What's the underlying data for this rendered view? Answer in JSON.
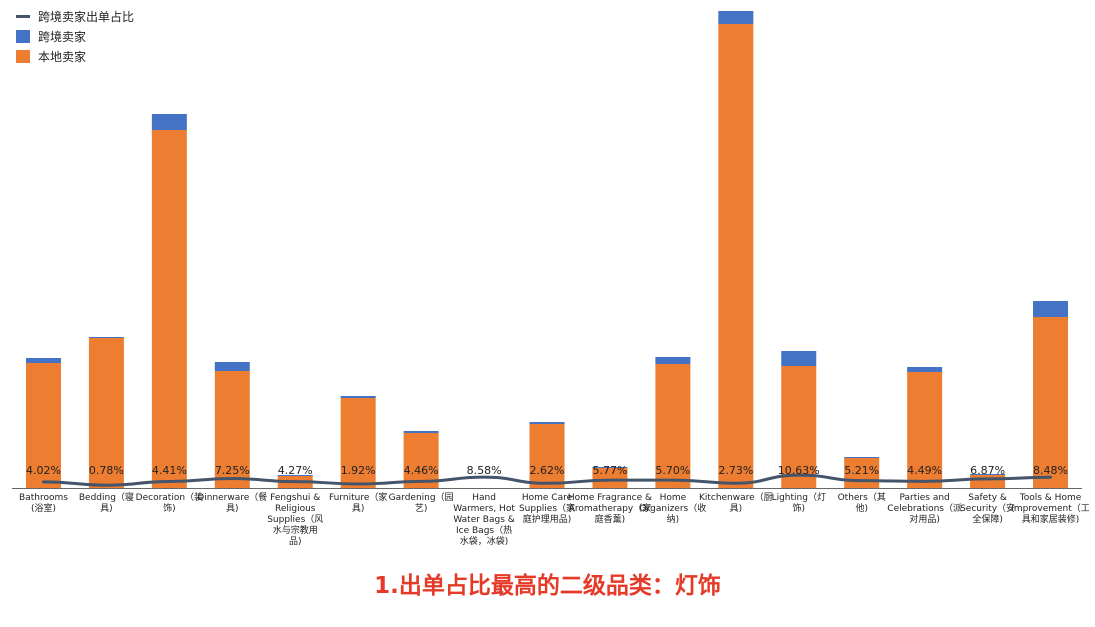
{
  "legend": {
    "line_label": "跨境卖家出单占比",
    "cross_label": "跨境卖家",
    "local_label": "本地卖家"
  },
  "caption": "1.出单占比最高的二级品类：灯饰",
  "colors": {
    "local": "#ed7d31",
    "cross": "#4472c4",
    "line": "#44546a",
    "caption": "#e53a27"
  },
  "chart_data": {
    "type": "bar",
    "stacked": true,
    "categories": [
      [
        "Bathrooms",
        "(浴室)"
      ],
      [
        "Bedding（寝",
        "具)"
      ],
      [
        "Decoration（装",
        "饰)"
      ],
      [
        "Dinnerware（餐",
        "具)"
      ],
      [
        "Fengshui &",
        "Religious",
        "Supplies（风",
        "水与宗教用",
        "品)"
      ],
      [
        "Furniture（家",
        "具)"
      ],
      [
        "Gardening（园",
        "艺)"
      ],
      [
        "Hand",
        "Warmers, Hot",
        "Water Bags &",
        "Ice Bags（热",
        "水袋，冰袋)"
      ],
      [
        "Home Care",
        "Supplies（家",
        "庭护理用品)"
      ],
      [
        "Home Fragrance &",
        "Aromatherapy（家",
        "庭香薰)"
      ],
      [
        "Home",
        "Organizers（收",
        "纳)"
      ],
      [
        "Kitchenware（厨",
        "具)"
      ],
      [
        "Lighting（灯",
        "饰)"
      ],
      [
        "Others（其",
        "他)"
      ],
      [
        "Parties and",
        "Celebrations（派",
        "对用品)"
      ],
      [
        "Safety &",
        "Security（安",
        "全保障)"
      ],
      [
        "Tools & Home",
        "Improvement（工",
        "具和家居装修)"
      ]
    ],
    "series": [
      {
        "name": "本地卖家",
        "values": [
          125,
          150,
          358,
          117,
          12,
          90,
          55,
          0,
          64,
          20,
          124,
          464,
          122,
          30,
          116,
          13,
          171
        ]
      },
      {
        "name": "跨境卖家",
        "values": [
          5,
          1,
          16,
          9,
          1,
          2,
          2,
          0,
          2,
          1,
          7,
          13,
          15,
          1,
          5,
          1,
          16
        ]
      }
    ],
    "line_series": {
      "name": "跨境卖家出单占比",
      "values": [
        4.02,
        0.78,
        4.41,
        7.25,
        4.27,
        1.92,
        4.46,
        8.58,
        2.62,
        5.77,
        5.7,
        2.73,
        10.63,
        5.21,
        4.49,
        6.87,
        8.48
      ],
      "labels": [
        "4.02%",
        "0.78%",
        "4.41%",
        "7.25%",
        "4.27%",
        "1.92%",
        "4.46%",
        "8.58%",
        "2.62%",
        "5.77%",
        "5.70%",
        "2.73%",
        "10.63%",
        "5.21%",
        "4.49%",
        "6.87%",
        "8.48%"
      ]
    },
    "ylim": [
      0,
      480
    ],
    "legend_position": "top-left",
    "grid": false
  }
}
